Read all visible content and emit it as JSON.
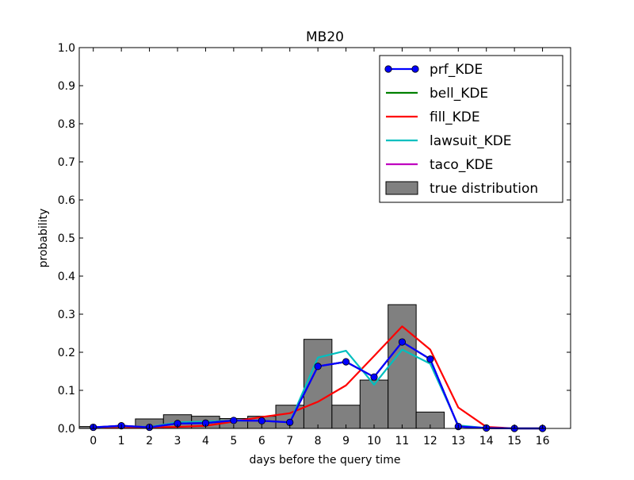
{
  "chart_data": {
    "type": "line",
    "title": "MB20",
    "xlabel": "days before the query time",
    "ylabel": "probability",
    "xlim": [
      -0.5,
      17
    ],
    "ylim": [
      0,
      1.0
    ],
    "xticks": [
      0,
      1,
      2,
      3,
      4,
      5,
      6,
      7,
      8,
      9,
      10,
      11,
      12,
      13,
      14,
      15,
      16
    ],
    "yticks": [
      0.0,
      0.1,
      0.2,
      0.3,
      0.4,
      0.5,
      0.6,
      0.7,
      0.8,
      0.9,
      1.0
    ],
    "ytick_labels": [
      "0.0",
      "0.1",
      "0.2",
      "0.3",
      "0.4",
      "0.5",
      "0.6",
      "0.7",
      "0.8",
      "0.9",
      "1.0"
    ],
    "grid": false,
    "legend_position": "top-right",
    "x": [
      0,
      1,
      2,
      3,
      4,
      5,
      6,
      7,
      8,
      9,
      10,
      11,
      12,
      13,
      14,
      15,
      16
    ],
    "series": [
      {
        "name": "prf_KDE",
        "color": "#0000ff",
        "marker": "circle",
        "values": [
          0.003,
          0.007,
          0.003,
          0.013,
          0.014,
          0.021,
          0.02,
          0.016,
          0.163,
          0.175,
          0.135,
          0.227,
          0.182,
          0.005,
          0.001,
          0.0,
          0.0
        ]
      },
      {
        "name": "bell_KDE",
        "color": "#008000",
        "marker": "none",
        "values": [
          0.003,
          0.007,
          0.003,
          0.013,
          0.014,
          0.021,
          0.02,
          0.016,
          0.163,
          0.175,
          0.135,
          0.227,
          0.182,
          0.005,
          0.001,
          0.0,
          0.0
        ]
      },
      {
        "name": "fill_KDE",
        "color": "#ff0000",
        "marker": "none",
        "values": [
          0.001,
          0.002,
          0.003,
          0.004,
          0.007,
          0.018,
          0.03,
          0.04,
          0.07,
          0.113,
          0.19,
          0.268,
          0.207,
          0.055,
          0.004,
          0.0,
          0.0
        ]
      },
      {
        "name": "lawsuit_KDE",
        "color": "#00bfbf",
        "marker": "none",
        "values": [
          0.003,
          0.006,
          0.004,
          0.016,
          0.018,
          0.02,
          0.02,
          0.016,
          0.186,
          0.204,
          0.115,
          0.207,
          0.17,
          0.008,
          0.001,
          0.0,
          0.0
        ]
      },
      {
        "name": "taco_KDE",
        "color": "#bf00bf",
        "marker": "none",
        "values": [
          0.003,
          0.007,
          0.003,
          0.013,
          0.014,
          0.021,
          0.02,
          0.016,
          0.163,
          0.175,
          0.135,
          0.227,
          0.182,
          0.005,
          0.001,
          0.0,
          0.0
        ]
      }
    ],
    "histogram": {
      "name": "true distribution",
      "color": "#808080",
      "values": [
        0.005,
        0.005,
        0.025,
        0.036,
        0.032,
        0.026,
        0.032,
        0.061,
        0.234,
        0.061,
        0.127,
        0.325,
        0.043,
        0.0,
        0.0,
        0.0,
        0.0
      ]
    }
  }
}
